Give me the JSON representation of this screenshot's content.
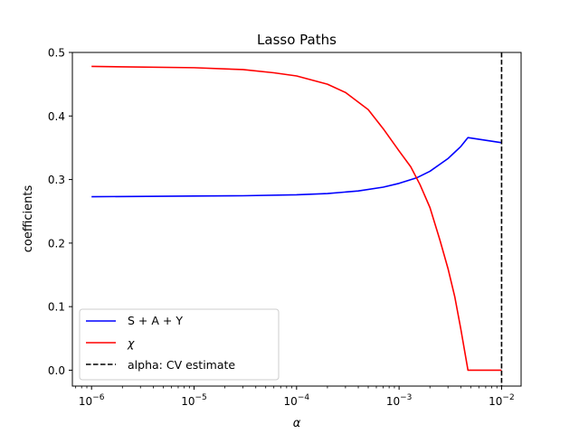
{
  "chart_data": {
    "type": "line",
    "title": "Lasso Paths",
    "xlabel": "α",
    "ylabel": "coefficients",
    "xscale": "log",
    "xlim": [
      6.5e-07,
      0.0155
    ],
    "ylim": [
      -0.025,
      0.5
    ],
    "grid": false,
    "legend_position": "lower-left",
    "x_ticks": [
      {
        "value": 1e-06,
        "base": "10",
        "exp": "−6"
      },
      {
        "value": 1e-05,
        "base": "10",
        "exp": "−5"
      },
      {
        "value": 0.0001,
        "base": "10",
        "exp": "−4"
      },
      {
        "value": 0.001,
        "base": "10",
        "exp": "−3"
      },
      {
        "value": 0.01,
        "base": "10",
        "exp": "−2"
      }
    ],
    "y_ticks": [
      {
        "value": 0.0,
        "label": "0.0"
      },
      {
        "value": 0.1,
        "label": "0.1"
      },
      {
        "value": 0.2,
        "label": "0.2"
      },
      {
        "value": 0.3,
        "label": "0.3"
      },
      {
        "value": 0.4,
        "label": "0.4"
      },
      {
        "value": 0.5,
        "label": "0.5"
      }
    ],
    "series": [
      {
        "name": "S + A + Y",
        "color": "#0000ff",
        "style": "solid",
        "points": [
          [
            1e-06,
            0.273
          ],
          [
            1e-05,
            0.274
          ],
          [
            3e-05,
            0.2745
          ],
          [
            0.0001,
            0.276
          ],
          [
            0.0002,
            0.278
          ],
          [
            0.0004,
            0.282
          ],
          [
            0.0007,
            0.288
          ],
          [
            0.001,
            0.294
          ],
          [
            0.0015,
            0.303
          ],
          [
            0.002,
            0.313
          ],
          [
            0.003,
            0.333
          ],
          [
            0.004,
            0.352
          ],
          [
            0.0047,
            0.366
          ],
          [
            0.01,
            0.358
          ]
        ]
      },
      {
        "name": "χ",
        "color": "#ff0000",
        "style": "solid",
        "points": [
          [
            1e-06,
            0.478
          ],
          [
            1e-05,
            0.476
          ],
          [
            3e-05,
            0.473
          ],
          [
            6e-05,
            0.468
          ],
          [
            0.0001,
            0.463
          ],
          [
            0.0002,
            0.45
          ],
          [
            0.0003,
            0.437
          ],
          [
            0.0005,
            0.41
          ],
          [
            0.0007,
            0.38
          ],
          [
            0.001,
            0.345
          ],
          [
            0.0013,
            0.32
          ],
          [
            0.0016,
            0.292
          ],
          [
            0.002,
            0.256
          ],
          [
            0.0025,
            0.205
          ],
          [
            0.003,
            0.16
          ],
          [
            0.0035,
            0.115
          ],
          [
            0.004,
            0.065
          ],
          [
            0.0047,
            0.0
          ],
          [
            0.01,
            0.0
          ]
        ]
      }
    ],
    "vlines": [
      {
        "name": "alpha: CV estimate",
        "x": 0.01,
        "color": "#000000",
        "style": "dashed"
      }
    ]
  }
}
